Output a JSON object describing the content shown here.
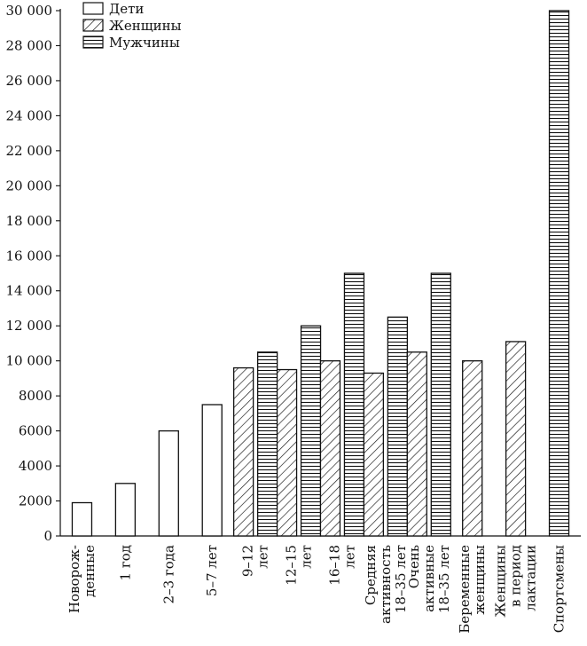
{
  "chart_data": {
    "type": "bar",
    "title": "",
    "xlabel": "",
    "ylabel": "",
    "ylim": [
      0,
      30000
    ],
    "y_ticks": [
      {
        "value": 0,
        "label": "0"
      },
      {
        "value": 2000,
        "label": "2000"
      },
      {
        "value": 4000,
        "label": "4000"
      },
      {
        "value": 6000,
        "label": "6000"
      },
      {
        "value": 8000,
        "label": "8000"
      },
      {
        "value": 10000,
        "label": "10 000"
      },
      {
        "value": 12000,
        "label": "12 000"
      },
      {
        "value": 14000,
        "label": "14 000"
      },
      {
        "value": 16000,
        "label": "16 000"
      },
      {
        "value": 18000,
        "label": "18 000"
      },
      {
        "value": 20000,
        "label": "20 000"
      },
      {
        "value": 22000,
        "label": "22 000"
      },
      {
        "value": 24000,
        "label": "24 000"
      },
      {
        "value": 26000,
        "label": "26 000"
      },
      {
        "value": 28000,
        "label": "28 000"
      },
      {
        "value": 30000,
        "label": "30 000"
      }
    ],
    "legend": {
      "placement": "top-left",
      "entries": [
        {
          "key": "children",
          "label": "Дети",
          "pattern": "none"
        },
        {
          "key": "women",
          "label": "Женщины",
          "pattern": "diagonal"
        },
        {
          "key": "men",
          "label": "Мужчины",
          "pattern": "horizontal"
        }
      ]
    },
    "categories": [
      {
        "lines": [
          "Новорож-",
          "денные"
        ],
        "bars": [
          {
            "series": "children",
            "value": 1900
          }
        ]
      },
      {
        "lines": [
          "1 год"
        ],
        "bars": [
          {
            "series": "children",
            "value": 3000
          }
        ]
      },
      {
        "lines": [
          "2–3 года"
        ],
        "bars": [
          {
            "series": "children",
            "value": 6000
          }
        ]
      },
      {
        "lines": [
          "5–7 лет"
        ],
        "bars": [
          {
            "series": "children",
            "value": 7500
          }
        ]
      },
      {
        "lines": [
          "9–12",
          "лет"
        ],
        "bars": [
          {
            "series": "women",
            "value": 9600
          },
          {
            "series": "men",
            "value": 10500
          }
        ]
      },
      {
        "lines": [
          "12–15",
          "лет"
        ],
        "bars": [
          {
            "series": "women",
            "value": 9500
          },
          {
            "series": "men",
            "value": 12000
          }
        ]
      },
      {
        "lines": [
          "16–18",
          "лет"
        ],
        "bars": [
          {
            "series": "women",
            "value": 10000
          },
          {
            "series": "men",
            "value": 15000
          }
        ]
      },
      {
        "lines": [
          "Средняя",
          "активность",
          "18–35 лет"
        ],
        "bars": [
          {
            "series": "women",
            "value": 9300
          },
          {
            "series": "men",
            "value": 12500
          }
        ]
      },
      {
        "lines": [
          "Очень",
          "активные",
          "18–35 лет"
        ],
        "bars": [
          {
            "series": "women",
            "value": 10500
          },
          {
            "series": "men",
            "value": 15000
          }
        ]
      },
      {
        "lines": [
          "Беременные",
          "женщины"
        ],
        "bars": [
          {
            "series": "women",
            "value": 10000
          }
        ]
      },
      {
        "lines": [
          "Женщины",
          "в период",
          "лактации"
        ],
        "bars": [
          {
            "series": "women",
            "value": 11100
          }
        ]
      },
      {
        "lines": [
          "Спортсмены"
        ],
        "bars": [
          {
            "series": "men",
            "value": 30000
          }
        ]
      }
    ]
  }
}
